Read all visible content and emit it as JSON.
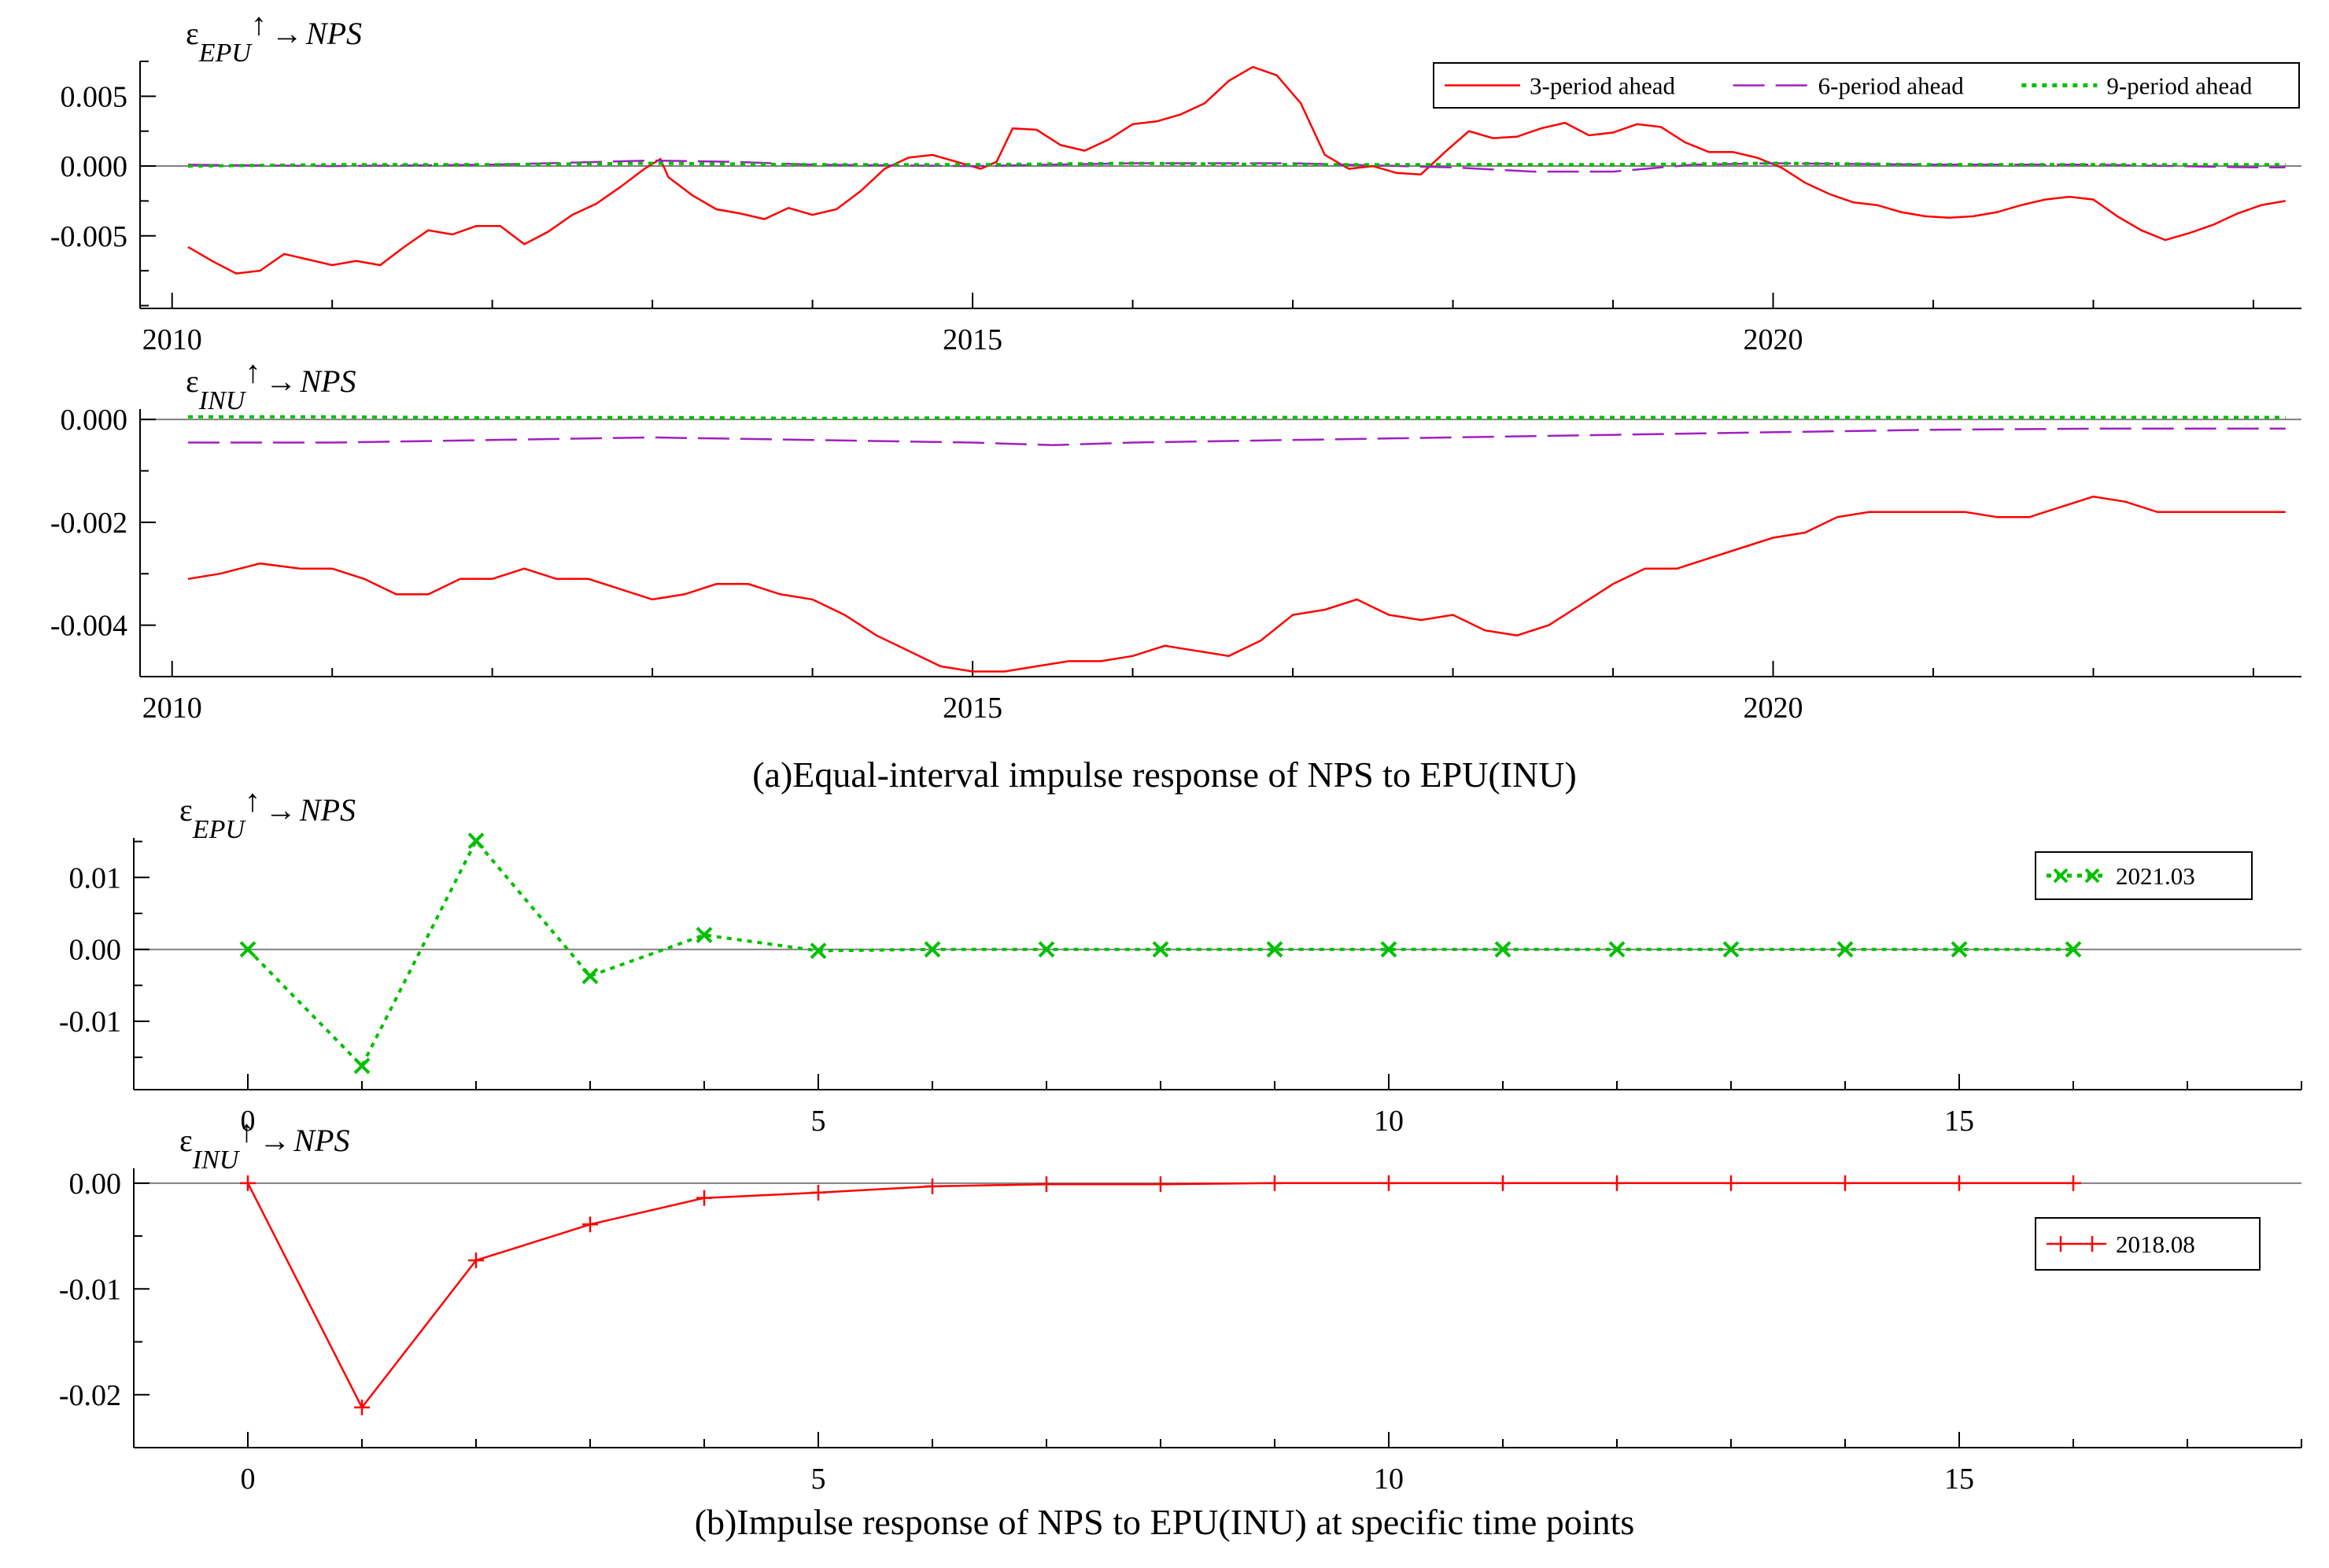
{
  "captions": {
    "a": "(a)Equal-interval impulse response of NPS to EPU(INU)",
    "b": "(b)Impulse response of NPS to EPU(INU) at specific time points"
  },
  "colors": {
    "red": "#ff0000",
    "purple": "#a020c0",
    "green": "#00c000",
    "zero": "#808080"
  },
  "chart_data": [
    {
      "type": "line",
      "panel_title": "εEPU↑→NPS",
      "panel_title_parts": {
        "sym": "ε",
        "sub": "EPU",
        "arrow": "↑",
        "to": "→",
        "target": "NPS"
      },
      "xlim": [
        2009.8,
        2023.3
      ],
      "ylim": [
        -0.0102,
        0.0075
      ],
      "xticks": [
        2010,
        2015,
        2020
      ],
      "xtick_labels": [
        "2010",
        "2015",
        "2020"
      ],
      "yticks": [
        0.005,
        0.0,
        -0.005
      ],
      "ytick_labels": [
        "0.005",
        "0.000",
        "-0.005"
      ],
      "legend_position": "top-right",
      "series": [
        {
          "name": "3-period ahead",
          "color": "#ff0000",
          "dash": "solid",
          "x": [
            2010.1,
            2010.25,
            2010.4,
            2010.55,
            2010.7,
            2010.85,
            2011.0,
            2011.15,
            2011.3,
            2011.45,
            2011.6,
            2011.75,
            2011.9,
            2012.05,
            2012.2,
            2012.35,
            2012.5,
            2012.65,
            2012.8,
            2012.95,
            2013.05,
            2013.1,
            2013.25,
            2013.4,
            2013.55,
            2013.7,
            2013.85,
            2014.0,
            2014.15,
            2014.3,
            2014.45,
            2014.6,
            2014.75,
            2014.9,
            2015.05,
            2015.15,
            2015.25,
            2015.4,
            2015.55,
            2015.7,
            2015.85,
            2016.0,
            2016.15,
            2016.3,
            2016.45,
            2016.6,
            2016.75,
            2016.9,
            2017.05,
            2017.2,
            2017.35,
            2017.5,
            2017.65,
            2017.8,
            2017.95,
            2018.1,
            2018.25,
            2018.4,
            2018.55,
            2018.7,
            2018.85,
            2019.0,
            2019.15,
            2019.3,
            2019.45,
            2019.6,
            2019.75,
            2019.9,
            2020.05,
            2020.2,
            2020.35,
            2020.5,
            2020.65,
            2020.8,
            2020.95,
            2021.1,
            2021.25,
            2021.4,
            2021.55,
            2021.7,
            2021.85,
            2022.0,
            2022.15,
            2022.3,
            2022.45,
            2022.6,
            2022.75,
            2022.9,
            2023.05,
            2023.2
          ],
          "y": [
            -0.0058,
            -0.0068,
            -0.0077,
            -0.0075,
            -0.0063,
            -0.0067,
            -0.0071,
            -0.0068,
            -0.0071,
            -0.0058,
            -0.0046,
            -0.0049,
            -0.0043,
            -0.0043,
            -0.0056,
            -0.0047,
            -0.0035,
            -0.0027,
            -0.0015,
            -0.0002,
            0.0005,
            -0.0008,
            -0.0021,
            -0.0031,
            -0.0034,
            -0.0038,
            -0.003,
            -0.0035,
            -0.0031,
            -0.0018,
            -0.0002,
            0.0006,
            0.0008,
            0.0003,
            -0.0002,
            0.0003,
            0.0027,
            0.0026,
            0.0015,
            0.0011,
            0.0019,
            0.003,
            0.0032,
            0.0037,
            0.0045,
            0.0061,
            0.0071,
            0.0065,
            0.0045,
            0.0008,
            -0.0002,
            0.0,
            -0.0005,
            -0.0006,
            0.001,
            0.0025,
            0.002,
            0.0021,
            0.0027,
            0.0031,
            0.0022,
            0.0024,
            0.003,
            0.0028,
            0.0017,
            0.001,
            0.001,
            0.0006,
            -0.0001,
            -0.0012,
            -0.002,
            -0.0026,
            -0.0028,
            -0.0033,
            -0.0036,
            -0.0037,
            -0.0036,
            -0.0033,
            -0.0028,
            -0.0024,
            -0.0022,
            -0.0024,
            -0.0036,
            -0.0046,
            -0.0053,
            -0.0048,
            -0.0042,
            -0.0034,
            -0.0028,
            -0.0025
          ]
        },
        {
          "name": "6-period ahead",
          "color": "#a020c0",
          "dash": "long-dash",
          "x": [
            2010.1,
            2011.0,
            2012.0,
            2013.0,
            2013.5,
            2014.0,
            2015.0,
            2016.0,
            2017.0,
            2018.0,
            2018.5,
            2019.0,
            2019.5,
            2020.0,
            2021.0,
            2022.0,
            2023.0,
            2023.2
          ],
          "y": [
            0.0001,
            0.0,
            0.0001,
            0.0004,
            0.0003,
            0.0001,
            0.0,
            0.0002,
            0.0002,
            -0.0001,
            -0.0004,
            -0.0004,
            0.0001,
            0.0002,
            0.0001,
            0.0001,
            -0.0001,
            -0.0001
          ]
        },
        {
          "name": "9-period ahead",
          "color": "#00c000",
          "dash": "dotted",
          "x": [
            2010.1,
            2011.0,
            2012.0,
            2013.0,
            2014.0,
            2015.0,
            2016.0,
            2017.0,
            2018.0,
            2019.0,
            2020.0,
            2021.0,
            2022.0,
            2023.2
          ],
          "y": [
            0.0,
            0.0001,
            0.0001,
            0.0002,
            0.0001,
            0.0001,
            0.0002,
            0.0001,
            0.0001,
            0.0001,
            0.0002,
            0.0001,
            0.0001,
            0.0001
          ]
        }
      ]
    },
    {
      "type": "line",
      "panel_title": "εINU↑→NPS",
      "panel_title_parts": {
        "sym": "ε",
        "sub": "INU",
        "arrow": "↑",
        "to": "→",
        "target": "NPS"
      },
      "xlim": [
        2009.8,
        2023.3
      ],
      "ylim": [
        -0.005,
        0.0002
      ],
      "xticks": [
        2010,
        2015,
        2020
      ],
      "xtick_labels": [
        "2010",
        "2015",
        "2020"
      ],
      "yticks": [
        0.0,
        -0.002,
        -0.004
      ],
      "ytick_labels": [
        "0.000",
        "-0.002",
        "-0.004"
      ],
      "series": [
        {
          "name": "3-period ahead",
          "color": "#ff0000",
          "dash": "solid",
          "x": [
            2010.1,
            2010.3,
            2010.55,
            2010.8,
            2011.0,
            2011.2,
            2011.4,
            2011.6,
            2011.8,
            2012.0,
            2012.2,
            2012.4,
            2012.6,
            2012.8,
            2013.0,
            2013.2,
            2013.4,
            2013.6,
            2013.8,
            2014.0,
            2014.2,
            2014.4,
            2014.6,
            2014.8,
            2015.0,
            2015.2,
            2015.4,
            2015.6,
            2015.8,
            2016.0,
            2016.2,
            2016.4,
            2016.6,
            2016.8,
            2017.0,
            2017.2,
            2017.4,
            2017.6,
            2017.8,
            2018.0,
            2018.2,
            2018.4,
            2018.6,
            2018.8,
            2019.0,
            2019.2,
            2019.4,
            2019.6,
            2019.8,
            2020.0,
            2020.2,
            2020.4,
            2020.6,
            2020.8,
            2021.0,
            2021.2,
            2021.4,
            2021.6,
            2021.8,
            2022.0,
            2022.2,
            2022.4,
            2022.6,
            2022.8,
            2023.0,
            2023.2
          ],
          "y": [
            -0.0031,
            -0.003,
            -0.0028,
            -0.0029,
            -0.0029,
            -0.0031,
            -0.0034,
            -0.0034,
            -0.0031,
            -0.0031,
            -0.0029,
            -0.0031,
            -0.0031,
            -0.0033,
            -0.0035,
            -0.0034,
            -0.0032,
            -0.0032,
            -0.0034,
            -0.0035,
            -0.0038,
            -0.0042,
            -0.0045,
            -0.0048,
            -0.0049,
            -0.0049,
            -0.0048,
            -0.0047,
            -0.0047,
            -0.0046,
            -0.0044,
            -0.0045,
            -0.0046,
            -0.0043,
            -0.0038,
            -0.0037,
            -0.0035,
            -0.0038,
            -0.0039,
            -0.0038,
            -0.0041,
            -0.0042,
            -0.004,
            -0.0036,
            -0.0032,
            -0.0029,
            -0.0029,
            -0.0027,
            -0.0025,
            -0.0023,
            -0.0022,
            -0.0019,
            -0.0018,
            -0.0018,
            -0.0018,
            -0.0018,
            -0.0019,
            -0.0019,
            -0.0017,
            -0.0015,
            -0.0016,
            -0.0018,
            -0.0018,
            -0.0018,
            -0.0018,
            -0.0018
          ]
        },
        {
          "name": "6-period ahead",
          "color": "#a020c0",
          "dash": "long-dash",
          "x": [
            2010.1,
            2011.0,
            2012.0,
            2013.0,
            2014.0,
            2015.0,
            2015.5,
            2016.0,
            2017.0,
            2018.0,
            2019.0,
            2020.0,
            2021.0,
            2022.0,
            2023.2
          ],
          "y": [
            -0.00045,
            -0.00045,
            -0.0004,
            -0.00035,
            -0.0004,
            -0.00045,
            -0.0005,
            -0.00045,
            -0.0004,
            -0.00035,
            -0.0003,
            -0.00025,
            -0.0002,
            -0.00018,
            -0.00018
          ]
        },
        {
          "name": "9-period ahead",
          "color": "#00c000",
          "dash": "dotted",
          "x": [
            2010.1,
            2011.0,
            2012.0,
            2013.0,
            2014.0,
            2015.0,
            2016.0,
            2017.0,
            2018.0,
            2019.0,
            2020.0,
            2021.0,
            2022.0,
            2023.2
          ],
          "y": [
            5e-05,
            5e-05,
            3e-05,
            4e-05,
            2e-05,
            3e-05,
            3e-05,
            4e-05,
            3e-05,
            4e-05,
            4e-05,
            4e-05,
            4e-05,
            4e-05
          ]
        }
      ]
    },
    {
      "type": "line",
      "panel_title": "εEPU↑→NPS",
      "panel_title_parts": {
        "sym": "ε",
        "sub": "EPU",
        "arrow": "↑",
        "to": "→",
        "target": "NPS"
      },
      "xlim": [
        -1,
        18
      ],
      "ylim": [
        -0.0195,
        0.0155
      ],
      "xticks": [
        0,
        5,
        10,
        15
      ],
      "xtick_labels": [
        "0",
        "5",
        "10",
        "15"
      ],
      "yticks": [
        0.01,
        0.0,
        -0.01
      ],
      "ytick_labels": [
        "0.01",
        "0.00",
        "-0.01"
      ],
      "legend_position": "top-right",
      "series": [
        {
          "name": "2021.03",
          "color": "#00c000",
          "dash": "dotted",
          "marker": "x",
          "x": [
            0,
            1,
            2,
            3,
            4,
            5,
            6,
            7,
            8,
            9,
            10,
            11,
            12,
            13,
            14,
            15,
            16
          ],
          "y": [
            0.0,
            -0.0162,
            0.0151,
            -0.0037,
            0.002,
            -0.0002,
            0.0,
            0.0,
            0.0,
            0.0,
            0.0,
            0.0,
            0.0,
            0.0,
            0.0,
            0.0,
            0.0
          ]
        }
      ]
    },
    {
      "type": "line",
      "panel_title": "εINU↑→NPS",
      "panel_title_parts": {
        "sym": "ε",
        "sub": "INU",
        "arrow": "↑",
        "to": "→",
        "target": "NPS"
      },
      "xlim": [
        -1,
        18
      ],
      "ylim": [
        -0.025,
        0.0014
      ],
      "xticks": [
        0,
        5,
        10,
        15
      ],
      "xtick_labels": [
        "0",
        "5",
        "10",
        "15"
      ],
      "yticks": [
        0.0,
        -0.01,
        -0.02
      ],
      "ytick_labels": [
        "0.00",
        "-0.01",
        "-0.02"
      ],
      "legend_position": "right",
      "series": [
        {
          "name": "2018.08",
          "color": "#ff0000",
          "dash": "solid",
          "marker": "+",
          "x": [
            0,
            1,
            2,
            3,
            4,
            5,
            6,
            7,
            8,
            9,
            10,
            11,
            12,
            13,
            14,
            15,
            16
          ],
          "y": [
            0.0,
            -0.0212,
            -0.0073,
            -0.0039,
            -0.0014,
            -0.0009,
            -0.0003,
            -0.0001,
            -0.0001,
            0.0,
            0.0,
            0.0,
            0.0,
            0.0,
            0.0,
            0.0,
            0.0
          ]
        }
      ]
    }
  ]
}
